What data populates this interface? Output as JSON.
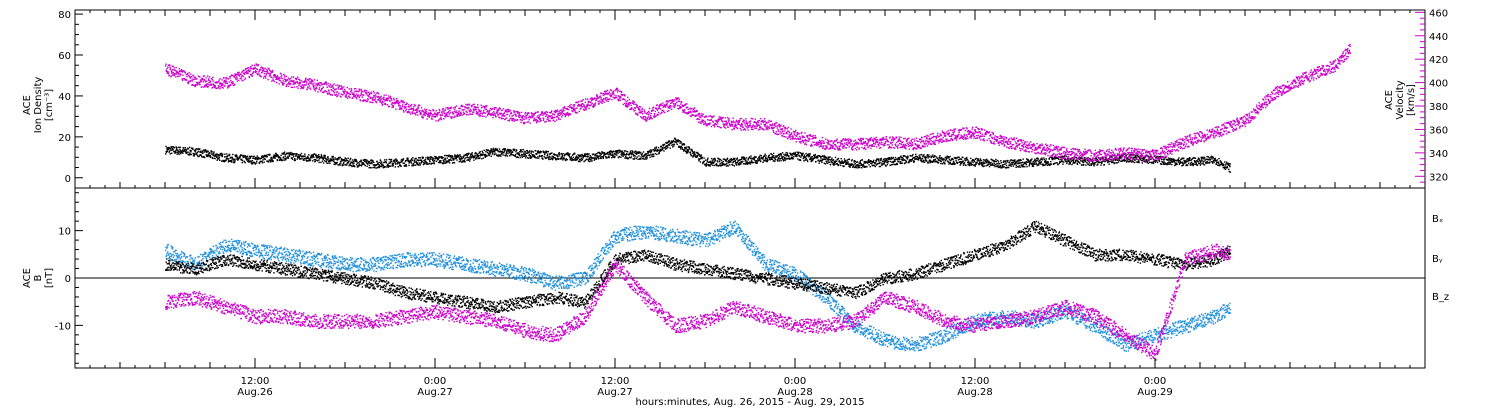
{
  "colors": {
    "black": "#000000",
    "magenta": "#cc00cc",
    "blue": "#1f8fdc"
  },
  "chart_data": [
    {
      "type": "scatter",
      "panel": "top",
      "y_left_label": [
        "ACE",
        "Ion Density",
        "[cm⁻³]"
      ],
      "y_right_label": [
        "ACE",
        "Velocity",
        "[km/s]"
      ],
      "ylim": [
        -5,
        82
      ],
      "y2lim": [
        310,
        462
      ],
      "y_ticks": [
        0,
        20,
        40,
        60,
        80
      ],
      "y2_ticks": [
        320,
        340,
        360,
        380,
        400,
        420,
        440,
        460
      ],
      "series": [
        {
          "axis": "left",
          "color": "#000000",
          "points": [
            [
              0,
              14
            ],
            [
              2,
              13
            ],
            [
              4,
              10
            ],
            [
              6,
              9
            ],
            [
              8,
              11
            ],
            [
              10,
              10
            ],
            [
              12,
              8
            ],
            [
              14,
              7
            ],
            [
              16,
              8
            ],
            [
              18,
              9
            ],
            [
              20,
              10
            ],
            [
              22,
              13
            ],
            [
              24,
              12
            ],
            [
              26,
              11
            ],
            [
              28,
              10
            ],
            [
              30,
              12
            ],
            [
              32,
              11
            ],
            [
              34,
              18
            ],
            [
              36,
              8
            ],
            [
              38,
              8
            ],
            [
              40,
              10
            ],
            [
              42,
              11
            ],
            [
              44,
              9
            ],
            [
              46,
              7
            ],
            [
              48,
              8
            ],
            [
              50,
              10
            ],
            [
              52,
              9
            ],
            [
              54,
              8
            ],
            [
              56,
              7
            ],
            [
              58,
              8
            ],
            [
              60,
              9
            ],
            [
              62,
              8
            ],
            [
              64,
              10
            ],
            [
              66,
              9
            ],
            [
              68,
              8
            ],
            [
              70,
              9
            ],
            [
              71,
              5
            ]
          ]
        },
        {
          "axis": "right",
          "color": "#cc00cc",
          "points": [
            [
              0,
              412
            ],
            [
              2,
              402
            ],
            [
              4,
              400
            ],
            [
              6,
              412
            ],
            [
              8,
              402
            ],
            [
              10,
              398
            ],
            [
              12,
              392
            ],
            [
              14,
              388
            ],
            [
              16,
              380
            ],
            [
              18,
              372
            ],
            [
              20,
              378
            ],
            [
              22,
              375
            ],
            [
              24,
              370
            ],
            [
              26,
              372
            ],
            [
              28,
              382
            ],
            [
              30,
              392
            ],
            [
              32,
              372
            ],
            [
              34,
              384
            ],
            [
              36,
              368
            ],
            [
              38,
              365
            ],
            [
              40,
              365
            ],
            [
              42,
              355
            ],
            [
              44,
              348
            ],
            [
              46,
              348
            ],
            [
              48,
              350
            ],
            [
              50,
              348
            ],
            [
              52,
              355
            ],
            [
              54,
              358
            ],
            [
              56,
              350
            ],
            [
              58,
              345
            ],
            [
              60,
              340
            ],
            [
              62,
              338
            ],
            [
              64,
              340
            ],
            [
              66,
              338
            ],
            [
              68,
              350
            ],
            [
              70,
              358
            ],
            [
              72,
              368
            ],
            [
              74,
              392
            ],
            [
              76,
              405
            ],
            [
              78,
              415
            ],
            [
              79,
              430
            ]
          ]
        }
      ]
    },
    {
      "type": "scatter",
      "panel": "bottom",
      "y_label": [
        "ACE",
        "B",
        "[nT]"
      ],
      "ylim": [
        -19,
        19
      ],
      "y_ticks": [
        -10,
        0,
        10
      ],
      "legend": [
        "Bₓ",
        "Bᵧ",
        "B_z"
      ],
      "series": [
        {
          "name": "Bₓ",
          "color": "#000000",
          "points": [
            [
              0,
              3
            ],
            [
              2,
              2
            ],
            [
              4,
              4
            ],
            [
              6,
              3
            ],
            [
              8,
              2
            ],
            [
              10,
              1
            ],
            [
              12,
              0
            ],
            [
              14,
              -1
            ],
            [
              16,
              -3
            ],
            [
              18,
              -4
            ],
            [
              20,
              -5
            ],
            [
              22,
              -6
            ],
            [
              24,
              -5
            ],
            [
              26,
              -4
            ],
            [
              28,
              -5
            ],
            [
              30,
              4
            ],
            [
              32,
              5
            ],
            [
              34,
              3
            ],
            [
              36,
              2
            ],
            [
              38,
              1
            ],
            [
              40,
              0
            ],
            [
              42,
              -1
            ],
            [
              44,
              -2
            ],
            [
              46,
              -3
            ],
            [
              48,
              0
            ],
            [
              50,
              1
            ],
            [
              52,
              3
            ],
            [
              54,
              5
            ],
            [
              56,
              7
            ],
            [
              58,
              11
            ],
            [
              60,
              8
            ],
            [
              62,
              5
            ],
            [
              64,
              5
            ],
            [
              66,
              4
            ],
            [
              68,
              3
            ],
            [
              70,
              4
            ],
            [
              71,
              6
            ]
          ]
        },
        {
          "name": "Bᵧ",
          "color": "#1f8fdc",
          "points": [
            [
              0,
              6
            ],
            [
              2,
              3
            ],
            [
              4,
              7
            ],
            [
              6,
              6
            ],
            [
              8,
              5
            ],
            [
              10,
              4
            ],
            [
              12,
              3
            ],
            [
              14,
              3
            ],
            [
              16,
              4
            ],
            [
              18,
              4
            ],
            [
              20,
              3
            ],
            [
              22,
              2
            ],
            [
              24,
              1
            ],
            [
              26,
              -1
            ],
            [
              28,
              0
            ],
            [
              30,
              9
            ],
            [
              32,
              10
            ],
            [
              34,
              9
            ],
            [
              36,
              8
            ],
            [
              38,
              11
            ],
            [
              40,
              3
            ],
            [
              42,
              1
            ],
            [
              44,
              -4
            ],
            [
              46,
              -10
            ],
            [
              48,
              -13
            ],
            [
              50,
              -14
            ],
            [
              52,
              -12
            ],
            [
              54,
              -9
            ],
            [
              56,
              -8
            ],
            [
              58,
              -9
            ],
            [
              60,
              -7
            ],
            [
              62,
              -10
            ],
            [
              64,
              -14
            ],
            [
              66,
              -12
            ],
            [
              68,
              -10
            ],
            [
              70,
              -8
            ],
            [
              71,
              -6
            ]
          ]
        },
        {
          "name": "B_z",
          "color": "#cc00cc",
          "points": [
            [
              0,
              -5
            ],
            [
              2,
              -4
            ],
            [
              4,
              -6
            ],
            [
              6,
              -8
            ],
            [
              8,
              -8
            ],
            [
              10,
              -9
            ],
            [
              12,
              -9
            ],
            [
              14,
              -9
            ],
            [
              16,
              -8
            ],
            [
              18,
              -7
            ],
            [
              20,
              -8
            ],
            [
              22,
              -9
            ],
            [
              24,
              -11
            ],
            [
              26,
              -12
            ],
            [
              28,
              -8
            ],
            [
              30,
              3
            ],
            [
              32,
              -4
            ],
            [
              34,
              -10
            ],
            [
              36,
              -9
            ],
            [
              38,
              -6
            ],
            [
              40,
              -8
            ],
            [
              42,
              -10
            ],
            [
              44,
              -10
            ],
            [
              46,
              -9
            ],
            [
              48,
              -4
            ],
            [
              50,
              -6
            ],
            [
              52,
              -9
            ],
            [
              54,
              -10
            ],
            [
              56,
              -9
            ],
            [
              58,
              -8
            ],
            [
              60,
              -6
            ],
            [
              62,
              -8
            ],
            [
              64,
              -12
            ],
            [
              66,
              -16
            ],
            [
              68,
              4
            ],
            [
              70,
              6
            ],
            [
              71,
              5
            ]
          ]
        }
      ]
    }
  ],
  "x_axis": {
    "xlim": [
      -6,
      84
    ],
    "ticks": [
      {
        "x": 6,
        "line1": "12:00",
        "line2": "Aug.26"
      },
      {
        "x": 18,
        "line1": "0:00",
        "line2": "Aug.27"
      },
      {
        "x": 30,
        "line1": "12:00",
        "line2": "Aug.27"
      },
      {
        "x": 42,
        "line1": "0:00",
        "line2": "Aug.28"
      },
      {
        "x": 54,
        "line1": "12:00",
        "line2": "Aug.28"
      },
      {
        "x": 66,
        "line1": "0:00",
        "line2": "Aug.29"
      }
    ],
    "title": "hours:minutes, Aug. 26, 2015 - Aug. 29, 2015"
  }
}
